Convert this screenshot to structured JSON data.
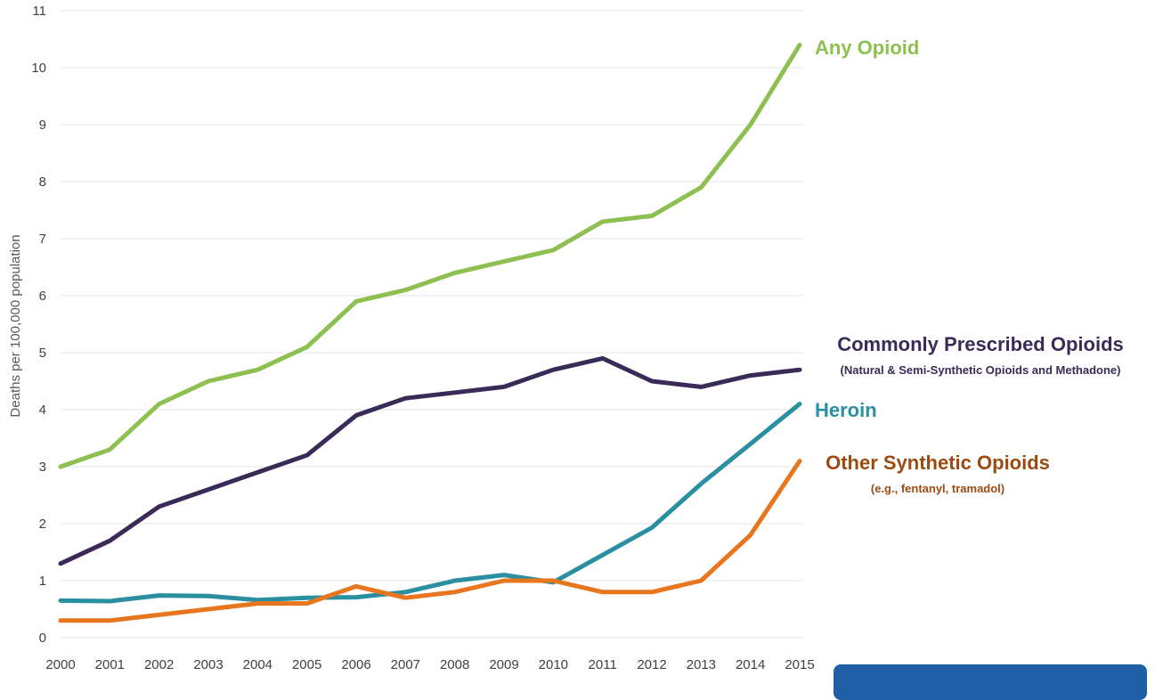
{
  "chart_data": {
    "type": "line",
    "ylabel": "Deaths per 100,000 population",
    "xlabel": "",
    "ylim": [
      0,
      11
    ],
    "y_ticks": [
      "0",
      "1",
      "2",
      "3",
      "4",
      "5",
      "6",
      "7",
      "8",
      "9",
      "10",
      "11"
    ],
    "grid": "horizontal",
    "x": [
      "2000",
      "2001",
      "2002",
      "2003",
      "2004",
      "2005",
      "2006",
      "2007",
      "2008",
      "2009",
      "2010",
      "2011",
      "2012",
      "2013",
      "2014",
      "2015"
    ],
    "series": [
      {
        "name": "Any Opioid",
        "color": "#8dc050",
        "values": [
          3.0,
          3.3,
          4.1,
          4.5,
          4.7,
          5.1,
          5.9,
          6.1,
          6.4,
          6.6,
          6.8,
          7.3,
          7.4,
          7.9,
          9.0,
          10.4
        ]
      },
      {
        "name": "Commonly Prescribed Opioids",
        "subtitle": "(Natural & Semi-Synthetic Opioids and Methadone)",
        "color": "#3a2a58",
        "values": [
          1.3,
          1.7,
          2.3,
          2.6,
          2.9,
          3.2,
          3.9,
          4.2,
          4.3,
          4.4,
          4.7,
          4.9,
          4.5,
          4.4,
          4.6,
          4.7
        ]
      },
      {
        "name": "Heroin",
        "color": "#2a8fa0",
        "values": [
          0.65,
          0.64,
          0.74,
          0.73,
          0.66,
          0.7,
          0.71,
          0.8,
          1.0,
          1.1,
          0.97,
          1.45,
          1.93,
          2.7,
          3.4,
          4.1
        ]
      },
      {
        "name": "Other Synthetic Opioids",
        "subtitle": "(e.g., fentanyl, tramadol)",
        "color": "#e8761e",
        "label_color": "#9b4a12",
        "values": [
          0.3,
          0.3,
          0.4,
          0.5,
          0.6,
          0.6,
          0.9,
          0.7,
          0.8,
          1.0,
          1.0,
          0.8,
          0.8,
          1.0,
          1.8,
          3.1
        ]
      }
    ]
  },
  "badge": {
    "color": "#1f5fa8"
  }
}
